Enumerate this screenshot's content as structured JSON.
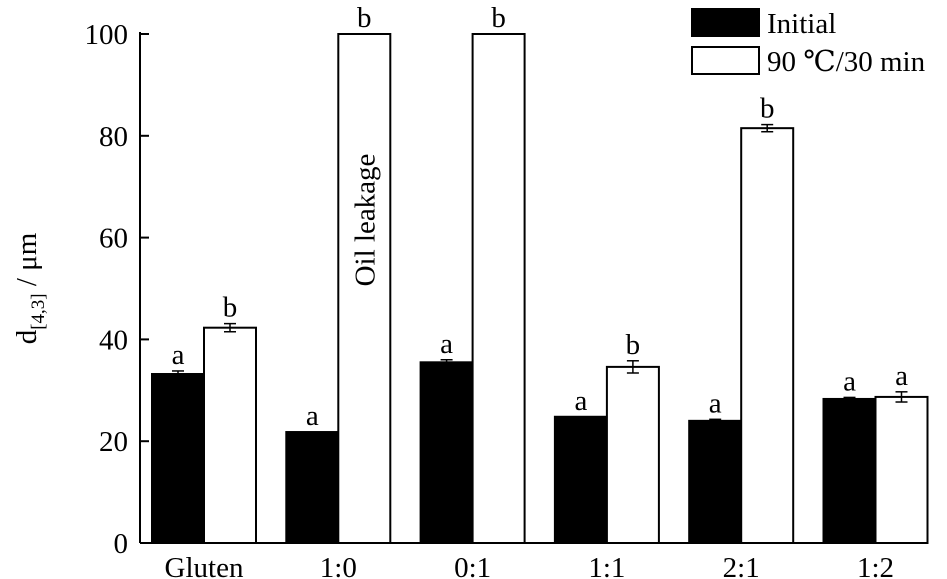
{
  "chart_data": {
    "type": "bar",
    "ylabel_main": "d",
    "ylabel_sub": "[4,3]",
    "ylabel_unit": " / μm",
    "categories": [
      "Gluten",
      "1:0",
      "0:1",
      "1:1",
      "2:1",
      "1:2"
    ],
    "ylim": [
      0,
      100
    ],
    "yticks": [
      "0",
      "20",
      "40",
      "60",
      "80",
      "100"
    ],
    "grid": false,
    "legend_position": "top-right",
    "series": [
      {
        "name": "Initial",
        "color": "#000000",
        "values": [
          33.2,
          21.8,
          35.5,
          24.8,
          24.0,
          28.3
        ],
        "errors": [
          0.6,
          0.0,
          0.5,
          0.0,
          0.3,
          0.3
        ],
        "labels": [
          "a",
          "a",
          "a",
          "a",
          "a",
          "a"
        ]
      },
      {
        "name": "90 ℃/30 min",
        "color": "#ffffff",
        "values": [
          42.3,
          100,
          100,
          34.6,
          81.5,
          28.7
        ],
        "errors": [
          0.8,
          0.0,
          0.0,
          1.2,
          0.7,
          1.0
        ],
        "labels": [
          "b",
          "b",
          "b",
          "b",
          "b",
          "a"
        ]
      }
    ],
    "annotations": [
      {
        "text": "Oil leakage",
        "category": "1:0",
        "series": 1,
        "orientation": "vertical"
      }
    ]
  }
}
